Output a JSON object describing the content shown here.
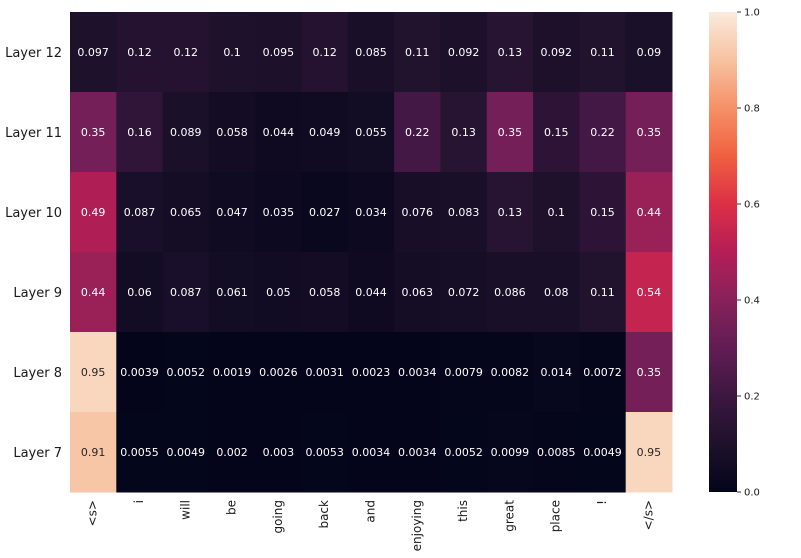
{
  "chart_data": {
    "type": "heatmap",
    "title": "",
    "xlabel": "",
    "ylabel": "",
    "rows": [
      "Layer 12",
      "Layer 11",
      "Layer 10",
      "Layer 9",
      "Layer 8",
      "Layer 7"
    ],
    "columns": [
      "<s>",
      "i",
      "will",
      "be",
      "going",
      "back",
      "and",
      "enjoying",
      "this",
      "great",
      "place",
      "!",
      "</s>"
    ],
    "values": [
      [
        "0.097",
        "0.12",
        "0.12",
        "0.1",
        "0.095",
        "0.12",
        "0.085",
        "0.11",
        "0.092",
        "0.13",
        "0.092",
        "0.11",
        "0.09"
      ],
      [
        "0.35",
        "0.16",
        "0.089",
        "0.058",
        "0.044",
        "0.049",
        "0.055",
        "0.22",
        "0.13",
        "0.35",
        "0.15",
        "0.22",
        "0.35"
      ],
      [
        "0.49",
        "0.087",
        "0.065",
        "0.047",
        "0.035",
        "0.027",
        "0.034",
        "0.076",
        "0.083",
        "0.13",
        "0.1",
        "0.15",
        "0.44"
      ],
      [
        "0.44",
        "0.06",
        "0.087",
        "0.061",
        "0.05",
        "0.058",
        "0.044",
        "0.063",
        "0.072",
        "0.086",
        "0.08",
        "0.11",
        "0.54"
      ],
      [
        "0.95",
        "0.0039",
        "0.0052",
        "0.0019",
        "0.0026",
        "0.0031",
        "0.0023",
        "0.0034",
        "0.0079",
        "0.0082",
        "0.014",
        "0.0072",
        "0.35"
      ],
      [
        "0.91",
        "0.0055",
        "0.0049",
        "0.002",
        "0.003",
        "0.0053",
        "0.0034",
        "0.0034",
        "0.0052",
        "0.0099",
        "0.0085",
        "0.0049",
        "0.95"
      ]
    ],
    "colorbar": {
      "range": [
        0.0,
        1.0
      ],
      "ticks": [
        "0.0",
        "0.2",
        "0.4",
        "0.6",
        "0.8",
        "1.0"
      ],
      "colormap": "rocket"
    },
    "grid": false
  }
}
